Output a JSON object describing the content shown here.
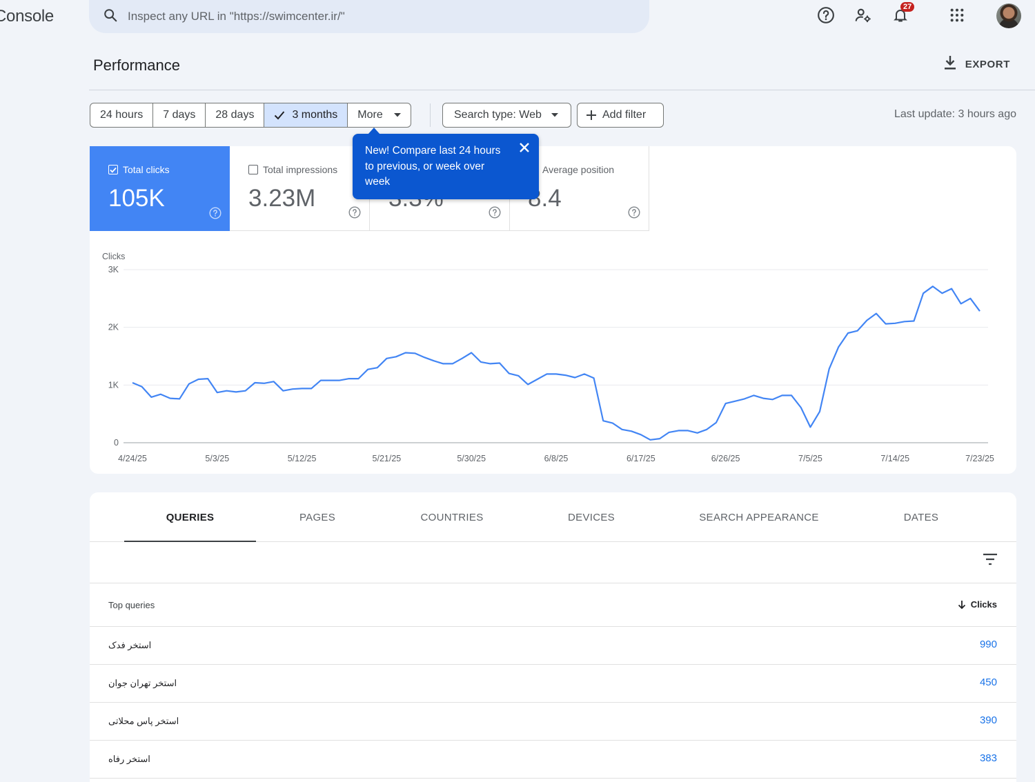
{
  "app": {
    "brand": "Console"
  },
  "search": {
    "placeholder": "Inspect any URL in \"https://swimcenter.ir/\""
  },
  "topbar": {
    "notifications_count": "27"
  },
  "header": {
    "title": "Performance",
    "export_label": "EXPORT"
  },
  "filters": {
    "ranges": [
      "24 hours",
      "7 days",
      "28 days",
      "3 months"
    ],
    "more_label": "More",
    "search_type_label": "Search type: Web",
    "add_filter_label": "Add filter",
    "last_update": "Last update: 3 hours ago"
  },
  "metrics": {
    "total_clicks": {
      "label": "Total clicks",
      "value": "105K",
      "checked": true
    },
    "total_impressions": {
      "label": "Total impressions",
      "value": "3.23M",
      "checked": false
    },
    "avg_ctr": {
      "value": "3.3%"
    },
    "avg_position": {
      "label": "Average position",
      "value": "8.4"
    }
  },
  "tooltip": {
    "text": "New! Compare last 24 hours to previous, or week over week"
  },
  "chart_data": {
    "type": "line",
    "ylabel": "Clicks",
    "ylim": [
      0,
      3000
    ],
    "yticks": [
      "0",
      "1K",
      "2K",
      "3K"
    ],
    "xticks": [
      "4/24/25",
      "5/3/25",
      "5/12/25",
      "5/21/25",
      "5/30/25",
      "6/8/25",
      "6/17/25",
      "6/26/25",
      "7/5/25",
      "7/14/25",
      "7/23/25"
    ],
    "color": "#4285f4",
    "series": [
      {
        "values": [
          1040,
          970,
          790,
          840,
          770,
          760,
          1020,
          1100,
          1110,
          870,
          900,
          880,
          900,
          1040,
          1030,
          1060,
          900,
          930,
          940,
          940,
          1080,
          1080,
          1080,
          1110,
          1110,
          1270,
          1300,
          1460,
          1490,
          1560,
          1550,
          1480,
          1420,
          1370,
          1370,
          1460,
          1560,
          1400,
          1370,
          1380,
          1200,
          1160,
          1010,
          1100,
          1190,
          1190,
          1170,
          1130,
          1190,
          1120,
          380,
          340,
          230,
          200,
          140,
          50,
          70,
          180,
          210,
          210,
          170,
          230,
          350,
          680,
          720,
          760,
          820,
          770,
          750,
          820,
          820,
          610,
          270,
          540,
          1280,
          1660,
          1900,
          1940,
          2120,
          2240,
          2060,
          2070,
          2100,
          2110,
          2590,
          2710,
          2590,
          2670,
          2410,
          2500,
          2280
        ]
      }
    ]
  },
  "table": {
    "tabs": [
      "QUERIES",
      "PAGES",
      "COUNTRIES",
      "DEVICES",
      "SEARCH APPEARANCE",
      "DATES"
    ],
    "header_left": "Top queries",
    "header_right": "Clicks",
    "rows": [
      {
        "query": "استخر فدک",
        "clicks": "990"
      },
      {
        "query": "استخر تهران جوان",
        "clicks": "450"
      },
      {
        "query": "استخر پاس محلاتی",
        "clicks": "390"
      },
      {
        "query": "استخر رفاه",
        "clicks": "383"
      }
    ]
  }
}
